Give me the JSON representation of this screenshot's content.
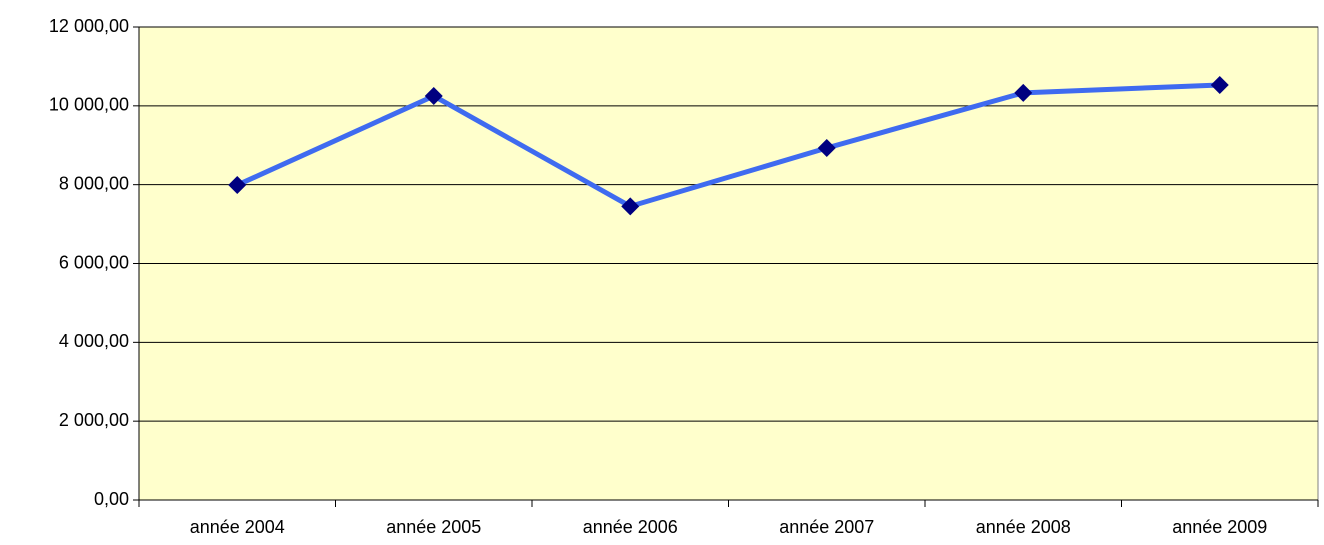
{
  "chart_data": {
    "type": "line",
    "categories": [
      "année 2004",
      "année 2005",
      "année 2006",
      "année 2007",
      "année 2008",
      "année 2009"
    ],
    "values": [
      7990,
      10250,
      7450,
      8930,
      10330,
      10530
    ],
    "color": "#3f6bf0",
    "marker_color": "#000080",
    "background": "#ffffcc",
    "ylim": [
      0,
      12000
    ],
    "yticks": [
      {
        "value": 0,
        "label": "0,00"
      },
      {
        "value": 2000,
        "label": "2 000,00"
      },
      {
        "value": 4000,
        "label": "4 000,00"
      },
      {
        "value": 6000,
        "label": "6 000,00"
      },
      {
        "value": 8000,
        "label": "8 000,00"
      },
      {
        "value": 10000,
        "label": "10 000,00"
      },
      {
        "value": 12000,
        "label": "12 000,00"
      }
    ],
    "grid": true
  }
}
